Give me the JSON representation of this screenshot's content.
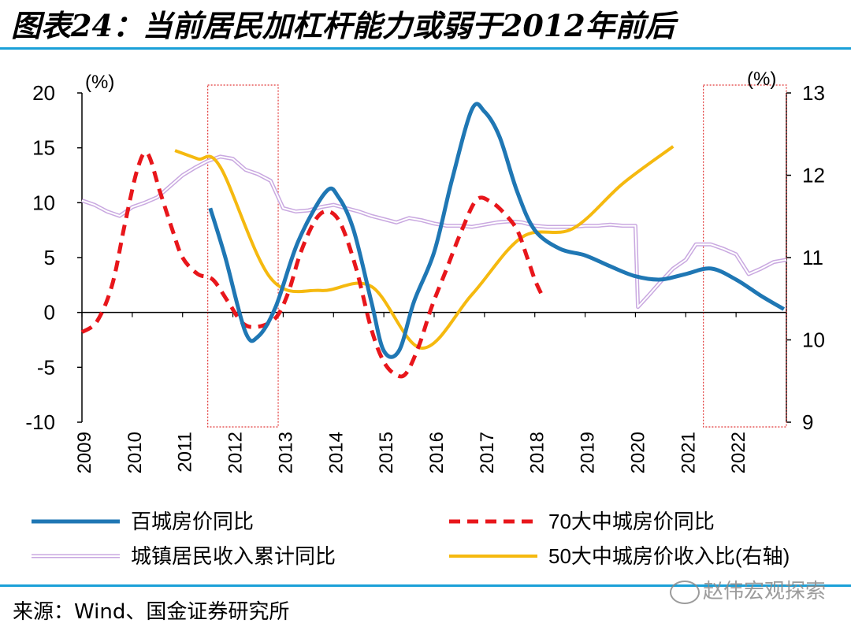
{
  "header": {
    "title": "图表24：当前居民加杠杆能力或弱于2012年前后"
  },
  "footer": {
    "source": "来源：Wind、国金证券研究所",
    "watermark": "赵伟宏观探索"
  },
  "colors": {
    "rule": "#1aa0d8",
    "series_blue": "#1f77b4",
    "series_red": "#e8161b",
    "series_lavender": "#c9a8e0",
    "series_yellow": "#f5b90f",
    "highlight_box": "#e23a3a"
  },
  "chart_data": {
    "type": "line",
    "y_left": {
      "unit_label": "(%)",
      "range": [
        -10,
        20
      ],
      "ticks": [
        "20",
        "15",
        "10",
        "5",
        "0",
        "-5",
        "-10"
      ]
    },
    "y_right": {
      "unit_label": "(%)",
      "range": [
        9,
        13
      ],
      "ticks": [
        "13",
        "12",
        "11",
        "10",
        "9"
      ]
    },
    "x": {
      "range": [
        2009,
        2023
      ],
      "tick_labels": [
        "2009",
        "2010",
        "2011",
        "2012",
        "2013",
        "2014",
        "2015",
        "2016",
        "2017",
        "2018",
        "2019",
        "2020",
        "2021",
        "2022"
      ]
    },
    "highlight_periods": [
      [
        2011.5,
        2012.9
      ],
      [
        2021.35,
        2023
      ]
    ],
    "series": [
      {
        "name": "百城房价同比",
        "axis": "left",
        "style": "solid-thick",
        "color": "#1f77b4",
        "points": [
          [
            2011.55,
            9.5
          ],
          [
            2011.85,
            5.0
          ],
          [
            2012.25,
            -1.8
          ],
          [
            2012.5,
            -2.2
          ],
          [
            2012.85,
            0.5
          ],
          [
            2013.3,
            6.5
          ],
          [
            2013.85,
            11.0
          ],
          [
            2014.1,
            10.5
          ],
          [
            2014.4,
            7.5
          ],
          [
            2014.75,
            1.0
          ],
          [
            2015.0,
            -3.5
          ],
          [
            2015.3,
            -3.5
          ],
          [
            2015.6,
            1.0
          ],
          [
            2016.0,
            5.5
          ],
          [
            2016.35,
            12.0
          ],
          [
            2016.75,
            18.5
          ],
          [
            2017.0,
            18.3
          ],
          [
            2017.3,
            16.0
          ],
          [
            2017.65,
            11.0
          ],
          [
            2018.0,
            7.5
          ],
          [
            2018.5,
            5.8
          ],
          [
            2019.0,
            5.2
          ],
          [
            2019.5,
            4.2
          ],
          [
            2020.0,
            3.3
          ],
          [
            2020.5,
            3.0
          ],
          [
            2021.0,
            3.5
          ],
          [
            2021.5,
            4.0
          ],
          [
            2022.0,
            3.0
          ],
          [
            2022.5,
            1.5
          ],
          [
            2022.95,
            0.3
          ]
        ]
      },
      {
        "name": "70大中城房价同比",
        "axis": "left",
        "style": "dashed",
        "color": "#e8161b",
        "points": [
          [
            2009.0,
            -1.8
          ],
          [
            2009.3,
            -0.8
          ],
          [
            2009.6,
            2.5
          ],
          [
            2009.85,
            8.0
          ],
          [
            2010.1,
            13.0
          ],
          [
            2010.3,
            14.5
          ],
          [
            2010.55,
            11.0
          ],
          [
            2010.8,
            7.5
          ],
          [
            2011.0,
            5.0
          ],
          [
            2011.3,
            3.5
          ],
          [
            2011.6,
            3.0
          ],
          [
            2011.9,
            1.0
          ],
          [
            2012.2,
            -1.0
          ],
          [
            2012.5,
            -1.3
          ],
          [
            2012.85,
            -0.5
          ],
          [
            2013.1,
            1.8
          ],
          [
            2013.35,
            5.5
          ],
          [
            2013.65,
            8.5
          ],
          [
            2013.9,
            9.2
          ],
          [
            2014.15,
            8.0
          ],
          [
            2014.45,
            4.0
          ],
          [
            2014.75,
            -1.5
          ],
          [
            2015.0,
            -4.5
          ],
          [
            2015.25,
            -5.7
          ],
          [
            2015.45,
            -5.5
          ],
          [
            2015.7,
            -3.0
          ],
          [
            2015.95,
            0.5
          ],
          [
            2016.25,
            4.0
          ],
          [
            2016.55,
            7.5
          ],
          [
            2016.85,
            10.3
          ],
          [
            2017.15,
            10.0
          ],
          [
            2017.4,
            9.0
          ],
          [
            2017.65,
            7.5
          ],
          [
            2017.85,
            5.0
          ],
          [
            2018.0,
            3.0
          ],
          [
            2018.15,
            1.5
          ]
        ]
      },
      {
        "name": "城镇居民收入累计同比",
        "axis": "left",
        "style": "double-thin",
        "color": "#c9a8e0",
        "points": [
          [
            2009.0,
            10.2
          ],
          [
            2009.25,
            9.8
          ],
          [
            2009.5,
            9.2
          ],
          [
            2009.75,
            8.8
          ],
          [
            2010.0,
            9.6
          ],
          [
            2010.25,
            10.0
          ],
          [
            2010.5,
            10.5
          ],
          [
            2010.75,
            11.5
          ],
          [
            2011.0,
            12.5
          ],
          [
            2011.25,
            13.2
          ],
          [
            2011.5,
            13.8
          ],
          [
            2011.75,
            14.2
          ],
          [
            2012.0,
            14.0
          ],
          [
            2012.25,
            13.0
          ],
          [
            2012.5,
            12.6
          ],
          [
            2012.75,
            12.0
          ],
          [
            2013.0,
            9.5
          ],
          [
            2013.25,
            9.2
          ],
          [
            2013.5,
            9.3
          ],
          [
            2013.75,
            9.6
          ],
          [
            2014.0,
            9.8
          ],
          [
            2014.25,
            9.5
          ],
          [
            2014.5,
            9.2
          ],
          [
            2014.75,
            8.8
          ],
          [
            2015.0,
            8.5
          ],
          [
            2015.25,
            8.2
          ],
          [
            2015.5,
            8.6
          ],
          [
            2015.75,
            8.4
          ],
          [
            2016.0,
            8.1
          ],
          [
            2016.25,
            7.9
          ],
          [
            2016.5,
            7.9
          ],
          [
            2016.75,
            7.8
          ],
          [
            2017.0,
            8.0
          ],
          [
            2017.25,
            8.2
          ],
          [
            2017.5,
            8.3
          ],
          [
            2017.75,
            8.2
          ],
          [
            2018.0,
            7.9
          ],
          [
            2018.25,
            7.8
          ],
          [
            2018.5,
            7.8
          ],
          [
            2018.75,
            7.8
          ],
          [
            2019.0,
            7.9
          ],
          [
            2019.25,
            7.9
          ],
          [
            2019.5,
            8.0
          ],
          [
            2019.75,
            7.9
          ],
          [
            2020.0,
            7.9
          ],
          [
            2020.05,
            0.5
          ],
          [
            2020.25,
            1.5
          ],
          [
            2020.5,
            2.8
          ],
          [
            2020.75,
            4.0
          ],
          [
            2021.0,
            4.8
          ],
          [
            2021.2,
            6.2
          ],
          [
            2021.5,
            6.2
          ],
          [
            2021.75,
            5.8
          ],
          [
            2022.0,
            5.3
          ],
          [
            2022.25,
            3.5
          ],
          [
            2022.5,
            4.0
          ],
          [
            2022.75,
            4.6
          ],
          [
            2023.0,
            4.8
          ]
        ]
      },
      {
        "name": "50大中城房价收入比(右轴)",
        "axis": "right",
        "style": "solid-medium",
        "color": "#f5b90f",
        "points": [
          [
            2010.85,
            12.3
          ],
          [
            2011.3,
            12.2
          ],
          [
            2011.75,
            12.1
          ],
          [
            2012.75,
            10.75
          ],
          [
            2013.75,
            10.6
          ],
          [
            2014.75,
            10.65
          ],
          [
            2015.75,
            9.9
          ],
          [
            2016.75,
            10.55
          ],
          [
            2017.75,
            11.25
          ],
          [
            2018.75,
            11.35
          ],
          [
            2019.75,
            11.9
          ],
          [
            2020.75,
            12.35
          ]
        ]
      }
    ],
    "legend": {
      "placement": "bottom",
      "entries": [
        "百城房价同比",
        "70大中城房价同比",
        "城镇居民收入累计同比",
        "50大中城房价收入比(右轴)"
      ]
    }
  }
}
